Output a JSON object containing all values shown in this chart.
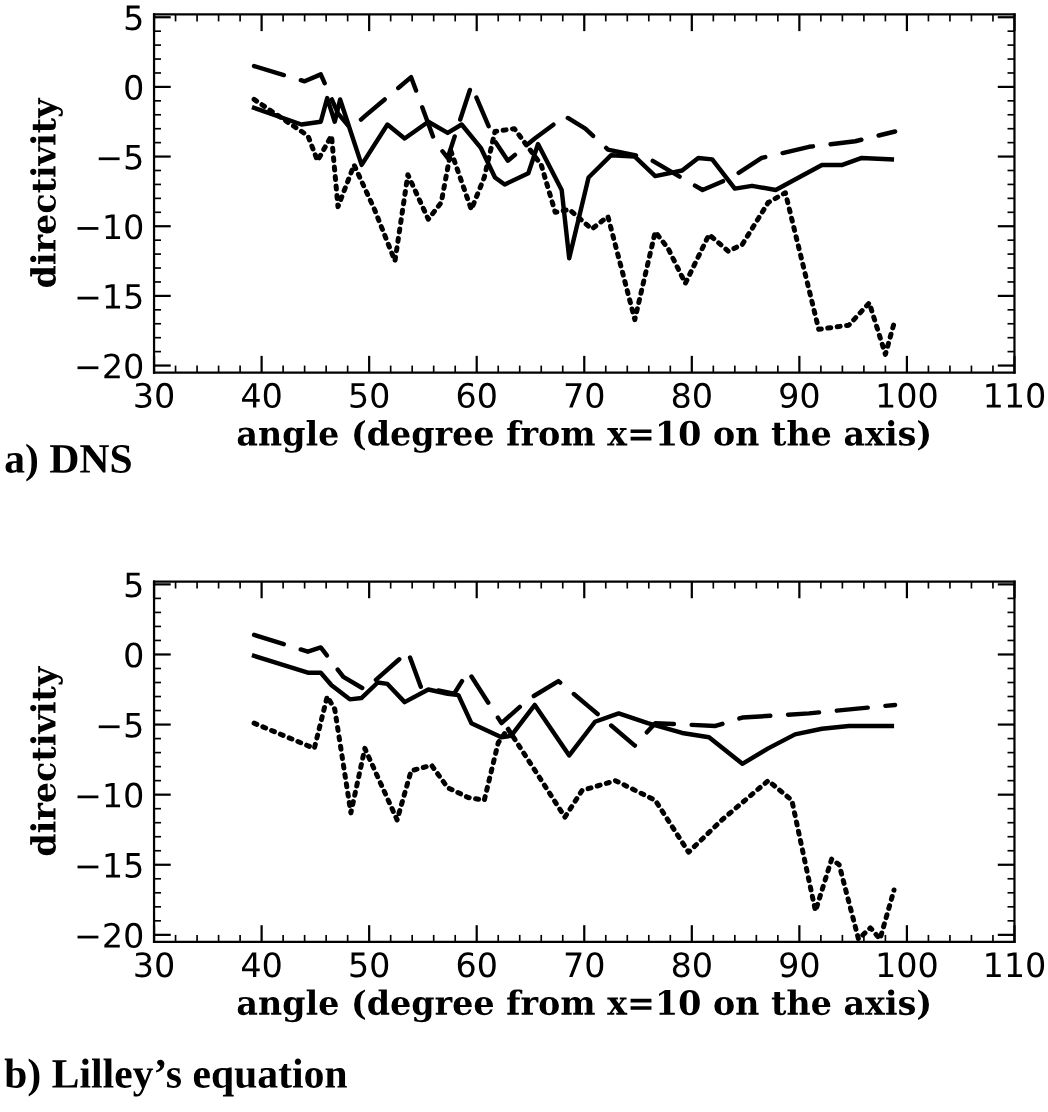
{
  "chart_data": [
    {
      "type": "line",
      "title": "a) DNS",
      "xlabel": "angle (degree from x=10 on the axis)",
      "ylabel": "directivity",
      "xlim": [
        30,
        110
      ],
      "xticks": [
        30,
        40,
        50,
        60,
        70,
        80,
        90,
        100,
        110
      ],
      "ylim": [
        -20.5,
        5.2
      ],
      "yticks": [
        {
          "value": 5,
          "label": "5"
        },
        {
          "value": 0,
          "label": "0"
        },
        {
          "value": -5,
          "label": "−5"
        },
        {
          "value": -10,
          "label": "−10"
        },
        {
          "value": -15,
          "label": "−15"
        },
        {
          "value": -20,
          "label": "−20"
        }
      ],
      "grid": false,
      "legend": false,
      "marker": "none",
      "series": [
        {
          "color": "#000000",
          "line_style": "solid",
          "x": [
            39.3,
            43.7,
            45.5,
            46.1,
            46.8,
            47.3,
            49.3,
            51.7,
            53.3,
            55.5,
            57.3,
            58.6,
            60.4,
            61.7,
            62.6,
            64.8,
            65.7,
            67.9,
            68.6,
            70.4,
            72.5,
            74.7,
            76.6,
            79.1,
            80.6,
            81.9,
            84.0,
            85.6,
            87.8,
            90.2,
            92.1,
            94.0,
            95.8,
            98.6
          ],
          "values": [
            -1.5,
            -2.7,
            -2.5,
            -0.8,
            -2.5,
            -0.9,
            -5.6,
            -2.7,
            -3.7,
            -2.5,
            -3.3,
            -2.7,
            -4.4,
            -6.5,
            -7.0,
            -6.2,
            -4.1,
            -7.4,
            -12.3,
            -6.5,
            -4.9,
            -5.0,
            -6.4,
            -6.0,
            -5.1,
            -5.2,
            -7.3,
            -7.1,
            -7.4,
            -6.4,
            -5.6,
            -5.6,
            -5.1,
            -5.2
          ]
        },
        {
          "color": "#000000",
          "line_style": "dashed",
          "x": [
            39.3,
            44.0,
            45.5,
            47.1,
            48.3,
            49.6,
            53.9,
            56.1,
            57.3,
            59.5,
            61.7,
            62.9,
            65.4,
            68.2,
            70.1,
            72.2,
            75.9,
            81.0,
            83.7,
            86.5,
            90.9,
            95.2,
            98.9
          ],
          "values": [
            1.5,
            0.4,
            0.9,
            -1.9,
            -3.0,
            -2.1,
            0.7,
            -3.9,
            -5.1,
            0.1,
            -3.9,
            -5.3,
            -3.7,
            -2.1,
            -3.0,
            -4.5,
            -5.1,
            -7.4,
            -6.5,
            -5.1,
            -4.3,
            -3.9,
            -3.2
          ]
        },
        {
          "color": "#000000",
          "line_style": "dotted",
          "x": [
            39.3,
            44.3,
            45.2,
            46.5,
            47.1,
            48.6,
            50.5,
            52.4,
            53.6,
            55.5,
            56.7,
            57.6,
            59.5,
            60.7,
            61.7,
            63.5,
            66.0,
            67.3,
            68.6,
            70.7,
            72.2,
            74.7,
            76.6,
            77.8,
            79.4,
            81.6,
            83.4,
            84.7,
            87.1,
            88.7,
            91.8,
            94.6,
            96.5,
            98.0,
            98.9
          ],
          "values": [
            -0.9,
            -3.5,
            -5.3,
            -3.5,
            -8.6,
            -5.6,
            -8.8,
            -12.5,
            -6.3,
            -9.5,
            -8.3,
            -4.6,
            -8.8,
            -6.5,
            -3.2,
            -3.0,
            -5.6,
            -9.0,
            -8.8,
            -10.2,
            -9.3,
            -16.7,
            -10.4,
            -11.6,
            -14.1,
            -10.6,
            -11.8,
            -11.3,
            -8.3,
            -7.6,
            -17.4,
            -17.1,
            -15.5,
            -19.2,
            -16.7
          ]
        }
      ]
    },
    {
      "type": "line",
      "title": "b) Lilley’s equation",
      "xlabel": "angle (degree from x=10 on the axis)",
      "ylabel": "directivity",
      "xlim": [
        30,
        110
      ],
      "xticks": [
        30,
        40,
        50,
        60,
        70,
        80,
        90,
        100,
        110
      ],
      "ylim": [
        -20.5,
        5.2
      ],
      "yticks": [
        {
          "value": 5,
          "label": "5"
        },
        {
          "value": 0,
          "label": "0"
        },
        {
          "value": -5,
          "label": "−5"
        },
        {
          "value": -10,
          "label": "−10"
        },
        {
          "value": -15,
          "label": "−15"
        },
        {
          "value": -20,
          "label": "−20"
        }
      ],
      "grid": false,
      "legend": false,
      "marker": "none",
      "series": [
        {
          "color": "#000000",
          "line_style": "solid",
          "x": [
            39.3,
            44.3,
            45.5,
            46.5,
            48.2,
            49.3,
            50.8,
            51.7,
            53.3,
            55.5,
            57.3,
            58.3,
            59.5,
            62.3,
            63.2,
            65.4,
            68.6,
            71.0,
            73.2,
            75.9,
            79.1,
            81.6,
            84.7,
            87.1,
            89.6,
            92.1,
            94.6,
            98.6
          ],
          "values": [
            -0.1,
            -1.3,
            -1.3,
            -2.2,
            -3.2,
            -3.1,
            -2.0,
            -2.1,
            -3.4,
            -2.5,
            -2.8,
            -2.9,
            -4.9,
            -5.9,
            -5.8,
            -3.6,
            -7.2,
            -4.8,
            -4.2,
            -4.9,
            -5.6,
            -5.9,
            -7.8,
            -6.7,
            -5.7,
            -5.3,
            -5.1,
            -5.1
          ]
        },
        {
          "color": "#000000",
          "line_style": "dashed",
          "x": [
            39.3,
            44.3,
            45.5,
            47.6,
            49.6,
            53.6,
            54.8,
            57.9,
            59.2,
            62.3,
            64.8,
            67.6,
            70.4,
            74.7,
            76.6,
            82.2,
            84.7,
            90.9,
            98.9
          ],
          "values": [
            1.4,
            0.2,
            0.5,
            -1.6,
            -2.5,
            0.2,
            -2.3,
            -2.8,
            -1.2,
            -4.9,
            -3.2,
            -1.9,
            -3.7,
            -6.5,
            -4.9,
            -5.1,
            -4.5,
            -4.2,
            -3.6
          ]
        },
        {
          "color": "#000000",
          "line_style": "dotted",
          "x": [
            39.3,
            44.9,
            46.1,
            46.8,
            48.3,
            49.6,
            52.6,
            53.9,
            55.8,
            57.3,
            59.2,
            60.7,
            62.0,
            62.9,
            65.7,
            68.2,
            69.8,
            72.9,
            76.6,
            79.7,
            82.8,
            87.1,
            89.3,
            91.5,
            93.0,
            93.7,
            95.5,
            96.6,
            97.5,
            98.8
          ],
          "values": [
            -4.9,
            -6.7,
            -3.0,
            -3.9,
            -11.3,
            -6.7,
            -11.8,
            -8.3,
            -7.9,
            -9.5,
            -10.2,
            -10.4,
            -6.3,
            -5.3,
            -8.6,
            -11.6,
            -9.7,
            -9.0,
            -10.4,
            -14.1,
            -11.8,
            -9.0,
            -10.4,
            -18.3,
            -14.6,
            -15.0,
            -20.3,
            -19.5,
            -20.3,
            -16.8
          ]
        }
      ]
    }
  ]
}
